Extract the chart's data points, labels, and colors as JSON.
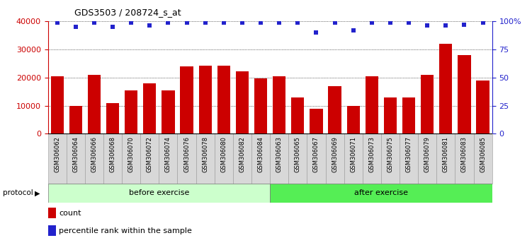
{
  "title": "GDS3503 / 208724_s_at",
  "categories": [
    "GSM306062",
    "GSM306064",
    "GSM306066",
    "GSM306068",
    "GSM306070",
    "GSM306072",
    "GSM306074",
    "GSM306076",
    "GSM306078",
    "GSM306080",
    "GSM306082",
    "GSM306084",
    "GSM306063",
    "GSM306065",
    "GSM306067",
    "GSM306069",
    "GSM306071",
    "GSM306073",
    "GSM306075",
    "GSM306077",
    "GSM306079",
    "GSM306081",
    "GSM306083",
    "GSM306085"
  ],
  "bar_values": [
    20500,
    9800,
    21000,
    10800,
    15500,
    18000,
    15500,
    24000,
    24200,
    24300,
    22200,
    19800,
    20500,
    12800,
    9000,
    17000,
    10000,
    20500,
    13000,
    13000,
    20900,
    32000,
    28000,
    19000
  ],
  "percentile_values": [
    99,
    95,
    99,
    95,
    99,
    96,
    99,
    99,
    99,
    99,
    99,
    99,
    99,
    99,
    90,
    99,
    92,
    99,
    99,
    99,
    96,
    96,
    97,
    99
  ],
  "bar_color": "#cc0000",
  "percentile_color": "#2222cc",
  "ylim_left": [
    0,
    40000
  ],
  "ylim_right": [
    0,
    100
  ],
  "yticks_left": [
    0,
    10000,
    20000,
    30000,
    40000
  ],
  "yticks_right": [
    0,
    25,
    50,
    75,
    100
  ],
  "ytick_labels_right": [
    "0",
    "25",
    "50",
    "75",
    "100%"
  ],
  "before_exercise_count": 12,
  "after_exercise_count": 12,
  "protocol_label": "protocol",
  "before_label": "before exercise",
  "after_label": "after exercise",
  "before_color": "#ccffcc",
  "after_color": "#55ee55",
  "legend_count_label": "count",
  "legend_percentile_label": "percentile rank within the sample",
  "tickbox_color": "#d8d8d8",
  "tickbox_edge_color": "#999999",
  "figsize": [
    7.51,
    3.54
  ],
  "dpi": 100
}
